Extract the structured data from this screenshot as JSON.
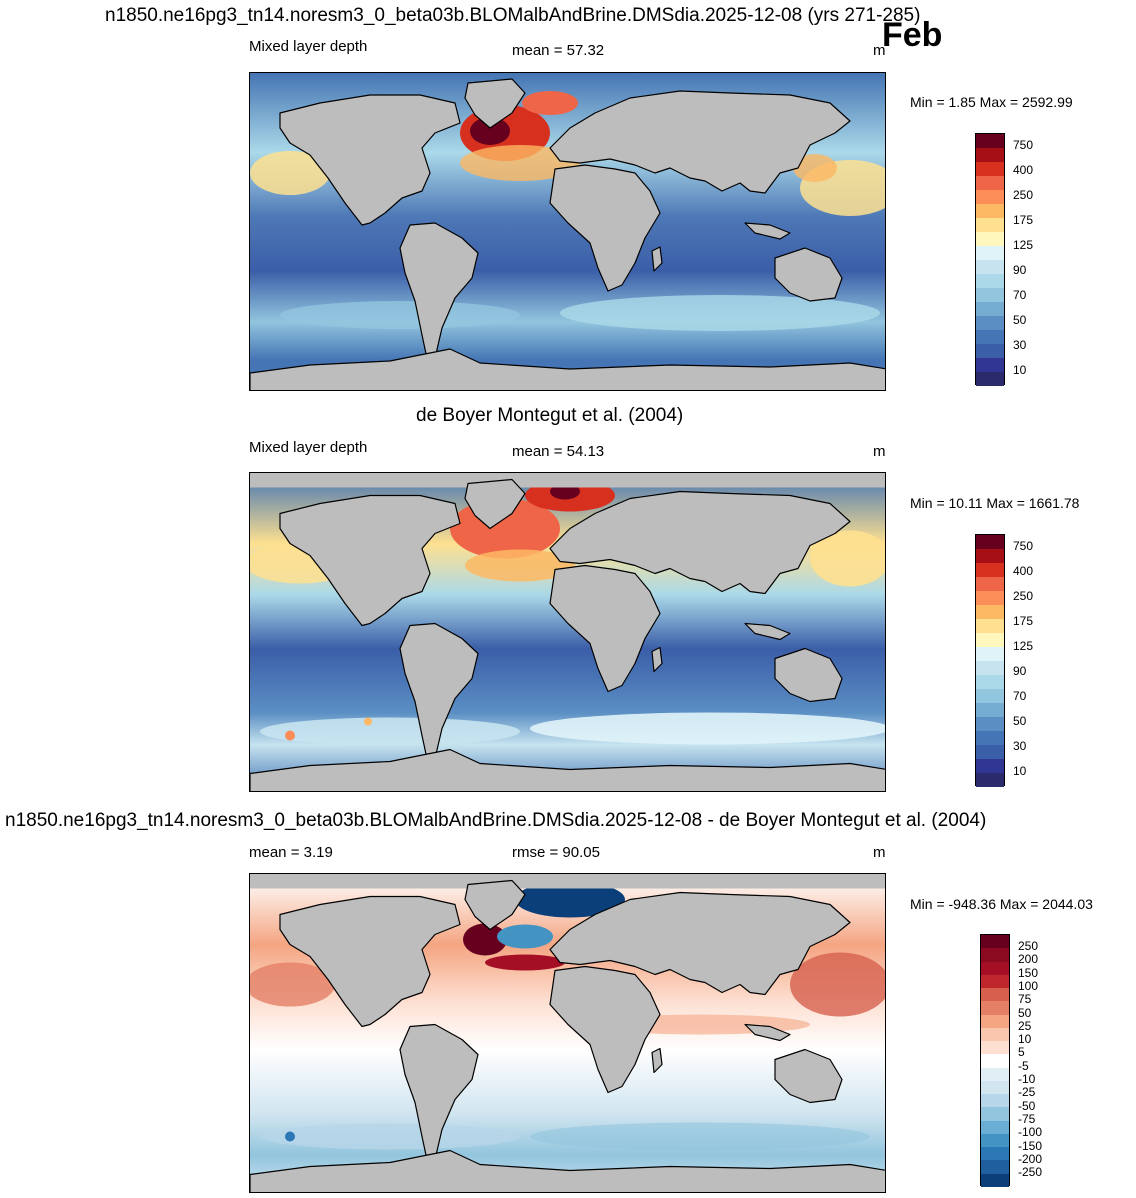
{
  "figure": {
    "month": "Feb",
    "panels": [
      {
        "id": "model",
        "title": "n1850.ne16pg3_tn14.noresm3_0_beta03b.BLOMalbAndBrine.DMSdia.2025-12-08 (yrs 271-285)",
        "left_label": "Mixed layer depth",
        "center_label": "mean =  57.32",
        "unit": "m",
        "minmax": "Min =   1.85 Max = 2592.99",
        "colorbar": {
          "labels": [
            "750",
            "400",
            "250",
            "175",
            "125",
            "90",
            "70",
            "50",
            "30",
            "10"
          ],
          "colors": [
            "#67001f",
            "#a50f15",
            "#d7301f",
            "#ef6548",
            "#fc8d59",
            "#fdb863",
            "#fee090",
            "#fff7bc",
            "#e0f3f8",
            "#c6e3ef",
            "#abd9e9",
            "#92c5de",
            "#74add1",
            "#5b8fc4",
            "#4575b4",
            "#3b5ea8",
            "#313695",
            "#2b2a6b"
          ]
        }
      },
      {
        "id": "obs",
        "title": "de Boyer Montegut et al. (2004)",
        "left_label": "Mixed layer depth",
        "center_label": "mean =  54.13",
        "unit": "m",
        "minmax": "Min =  10.11 Max = 1661.78",
        "colorbar": {
          "labels": [
            "750",
            "400",
            "250",
            "175",
            "125",
            "90",
            "70",
            "50",
            "30",
            "10"
          ],
          "colors": [
            "#67001f",
            "#a50f15",
            "#d7301f",
            "#ef6548",
            "#fc8d59",
            "#fdb863",
            "#fee090",
            "#fff7bc",
            "#e0f3f8",
            "#c6e3ef",
            "#abd9e9",
            "#92c5de",
            "#74add1",
            "#5b8fc4",
            "#4575b4",
            "#3b5ea8",
            "#313695",
            "#2b2a6b"
          ]
        }
      },
      {
        "id": "diff",
        "title": "n1850.ne16pg3_tn14.noresm3_0_beta03b.BLOMalbAndBrine.DMSdia.2025-12-08 - de Boyer Montegut et al. (2004)",
        "left_label": "mean =   3.19",
        "center_label": "rmse =  90.05",
        "unit": "m",
        "minmax": "Min = -948.36 Max = 2044.03",
        "colorbar": {
          "labels": [
            "250",
            "200",
            "150",
            "100",
            "75",
            "50",
            "25",
            "10",
            "5",
            "-5",
            "-10",
            "-25",
            "-50",
            "-75",
            "-100",
            "-150",
            "-200",
            "-250"
          ],
          "colors": [
            "#67001f",
            "#8b0a20",
            "#a50f26",
            "#c0272d",
            "#d6604d",
            "#e48066",
            "#f4a582",
            "#f9c7ae",
            "#fde0d2",
            "#ffffff",
            "#e1eef6",
            "#d1e5f0",
            "#b8d6e9",
            "#92c5de",
            "#6aaed6",
            "#4393c3",
            "#2c78b6",
            "#1f5f9e",
            "#0b3f7a"
          ]
        }
      }
    ]
  }
}
